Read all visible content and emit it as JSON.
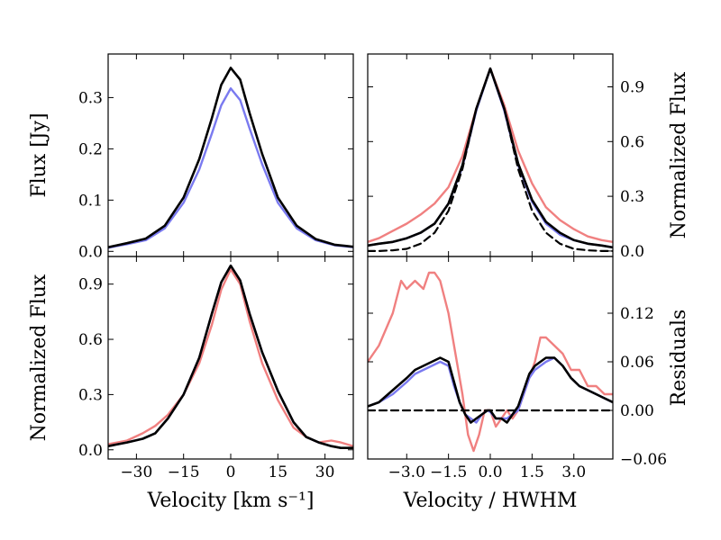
{
  "chart_data": [
    {
      "panel": "top-left",
      "type": "line",
      "xlim": [
        -39,
        39
      ],
      "ylim": [
        -0.01,
        0.385
      ],
      "xticks": [
        -30,
        -15,
        0,
        15,
        30
      ],
      "xtick_labels": [],
      "yticks": [
        0.0,
        0.1,
        0.2,
        0.3
      ],
      "ytick_labels": [
        "0.0",
        "0.1",
        "0.2",
        "0.3"
      ],
      "ytick_side": "left",
      "xlabel": "",
      "ylabel": "Flux [Jy]",
      "series": [
        {
          "name": "blue",
          "color": "#7a7af0",
          "dashed": false,
          "x": [
            -39,
            -33,
            -27,
            -21,
            -15,
            -10,
            -6,
            -3,
            0,
            3,
            6,
            10,
            15,
            21,
            27,
            33,
            39
          ],
          "y": [
            0.007,
            0.014,
            0.022,
            0.045,
            0.095,
            0.16,
            0.23,
            0.285,
            0.318,
            0.295,
            0.24,
            0.17,
            0.095,
            0.045,
            0.022,
            0.012,
            0.008
          ]
        },
        {
          "name": "black",
          "color": "#000000",
          "dashed": false,
          "x": [
            -39,
            -33,
            -27,
            -21,
            -15,
            -10,
            -6,
            -3,
            0,
            3,
            6,
            10,
            15,
            21,
            27,
            33,
            39
          ],
          "y": [
            0.008,
            0.016,
            0.025,
            0.05,
            0.105,
            0.18,
            0.26,
            0.325,
            0.358,
            0.335,
            0.27,
            0.19,
            0.105,
            0.05,
            0.024,
            0.013,
            0.009
          ]
        }
      ]
    },
    {
      "panel": "top-right",
      "type": "line",
      "xlim": [
        -4.4,
        4.4
      ],
      "ylim": [
        -0.03,
        1.08
      ],
      "xticks": [
        -3.0,
        -1.5,
        0.0,
        1.5,
        3.0
      ],
      "xtick_labels": [],
      "yticks": [
        0.0,
        0.3,
        0.6,
        0.9
      ],
      "ytick_labels": [
        "0.0",
        "0.3",
        "0.6",
        "0.9"
      ],
      "ytick_side": "right",
      "xlabel": "",
      "ylabel": "Normalized Flux",
      "series": [
        {
          "name": "red",
          "color": "#f08080",
          "dashed": false,
          "x": [
            -4.4,
            -4.0,
            -3.5,
            -3.0,
            -2.5,
            -2.0,
            -1.5,
            -1.0,
            -0.5,
            0.0,
            0.5,
            1.0,
            1.5,
            2.0,
            2.5,
            3.0,
            3.5,
            4.0,
            4.4
          ],
          "y": [
            0.05,
            0.07,
            0.11,
            0.15,
            0.2,
            0.26,
            0.35,
            0.52,
            0.78,
            1.0,
            0.8,
            0.55,
            0.37,
            0.24,
            0.17,
            0.12,
            0.08,
            0.06,
            0.05
          ]
        },
        {
          "name": "blue",
          "color": "#7a7af0",
          "dashed": false,
          "x": [
            -4.4,
            -4.0,
            -3.5,
            -3.0,
            -2.5,
            -2.0,
            -1.5,
            -1.0,
            -0.5,
            0.0,
            0.5,
            1.0,
            1.5,
            2.0,
            2.5,
            3.0,
            3.5,
            4.0,
            4.4
          ],
          "y": [
            0.03,
            0.04,
            0.05,
            0.07,
            0.1,
            0.15,
            0.26,
            0.46,
            0.77,
            1.0,
            0.77,
            0.47,
            0.27,
            0.15,
            0.09,
            0.06,
            0.04,
            0.03,
            0.02
          ]
        },
        {
          "name": "black",
          "color": "#000000",
          "dashed": false,
          "x": [
            -4.4,
            -4.0,
            -3.5,
            -3.0,
            -2.5,
            -2.0,
            -1.5,
            -1.0,
            -0.5,
            0.0,
            0.5,
            1.0,
            1.5,
            2.0,
            2.5,
            3.0,
            3.5,
            4.0,
            4.4
          ],
          "y": [
            0.03,
            0.04,
            0.05,
            0.07,
            0.1,
            0.15,
            0.26,
            0.47,
            0.78,
            1.0,
            0.78,
            0.48,
            0.28,
            0.16,
            0.1,
            0.06,
            0.04,
            0.03,
            0.02
          ]
        },
        {
          "name": "gaussian",
          "color": "#000000",
          "dashed": true,
          "x": [
            -4.4,
            -4.0,
            -3.5,
            -3.0,
            -2.5,
            -2.0,
            -1.5,
            -1.0,
            -0.5,
            0.0,
            0.5,
            1.0,
            1.5,
            2.0,
            2.5,
            3.0,
            3.5,
            4.0,
            4.4
          ],
          "y": [
            0.0,
            0.0,
            0.004,
            0.012,
            0.04,
            0.1,
            0.22,
            0.45,
            0.78,
            1.0,
            0.78,
            0.45,
            0.22,
            0.1,
            0.04,
            0.012,
            0.004,
            0.0,
            0.0
          ]
        }
      ]
    },
    {
      "panel": "bottom-left",
      "type": "line",
      "xlim": [
        -39,
        39
      ],
      "ylim": [
        -0.05,
        1.05
      ],
      "xticks": [
        -30,
        -15,
        0,
        15,
        30
      ],
      "xtick_labels": [
        "−30",
        "−15",
        "0",
        "15",
        "30"
      ],
      "yticks": [
        0.0,
        0.3,
        0.6,
        0.9
      ],
      "ytick_labels": [
        "0.0",
        "0.3",
        "0.6",
        "0.9"
      ],
      "ytick_side": "left",
      "xlabel": "Velocity [km s⁻¹]",
      "ylabel": "Normalized Flux",
      "series": [
        {
          "name": "red",
          "color": "#f08080",
          "dashed": false,
          "x": [
            -39,
            -33,
            -28,
            -24,
            -20,
            -15,
            -10,
            -6,
            -3,
            0,
            3,
            6,
            10,
            15,
            20,
            24,
            28,
            32,
            35,
            39
          ],
          "y": [
            0.03,
            0.05,
            0.09,
            0.13,
            0.19,
            0.3,
            0.47,
            0.68,
            0.87,
            0.98,
            0.9,
            0.7,
            0.47,
            0.27,
            0.12,
            0.07,
            0.04,
            0.05,
            0.04,
            0.02
          ]
        },
        {
          "name": "blue",
          "color": "#7a7af0",
          "dashed": false,
          "x": [
            -39,
            -33,
            -28,
            -24,
            -20,
            -15,
            -10,
            -6,
            -3,
            0,
            3,
            6,
            10,
            15,
            20,
            24,
            28,
            32,
            35,
            39
          ],
          "y": [
            0.02,
            0.04,
            0.06,
            0.09,
            0.17,
            0.3,
            0.5,
            0.74,
            0.91,
            1.0,
            0.92,
            0.74,
            0.53,
            0.32,
            0.15,
            0.07,
            0.04,
            0.02,
            0.01,
            0.01
          ]
        },
        {
          "name": "black",
          "color": "#000000",
          "dashed": false,
          "x": [
            -39,
            -33,
            -28,
            -24,
            -20,
            -15,
            -10,
            -6,
            -3,
            0,
            3,
            6,
            10,
            15,
            20,
            24,
            28,
            32,
            35,
            39
          ],
          "y": [
            0.02,
            0.04,
            0.06,
            0.09,
            0.17,
            0.3,
            0.5,
            0.74,
            0.91,
            1.0,
            0.92,
            0.74,
            0.53,
            0.32,
            0.15,
            0.07,
            0.04,
            0.02,
            0.01,
            0.01
          ]
        }
      ]
    },
    {
      "panel": "bottom-right",
      "type": "line",
      "xlim": [
        -4.4,
        4.4
      ],
      "ylim": [
        -0.06,
        0.19
      ],
      "xticks": [
        -3.0,
        -1.5,
        0.0,
        1.5,
        3.0
      ],
      "xtick_labels": [
        "−3.0",
        "−1.5",
        "0.0",
        "1.5",
        "3.0"
      ],
      "yticks": [
        -0.06,
        0.0,
        0.06,
        0.12
      ],
      "ytick_labels": [
        "−0.06",
        "0.00",
        "0.06",
        "0.12"
      ],
      "ytick_side": "right",
      "xlabel": "Velocity / HWHM",
      "ylabel": "Residuals",
      "series": [
        {
          "name": "red",
          "color": "#f08080",
          "dashed": false,
          "x": [
            -4.4,
            -4.0,
            -3.5,
            -3.2,
            -3.0,
            -2.7,
            -2.4,
            -2.2,
            -2.0,
            -1.8,
            -1.5,
            -1.3,
            -1.0,
            -0.8,
            -0.6,
            -0.4,
            -0.2,
            0.0,
            0.2,
            0.4,
            0.6,
            0.8,
            1.0,
            1.2,
            1.4,
            1.6,
            1.8,
            2.0,
            2.3,
            2.6,
            2.9,
            3.2,
            3.5,
            3.8,
            4.1,
            4.4
          ],
          "y": [
            0.06,
            0.08,
            0.12,
            0.16,
            0.15,
            0.16,
            0.15,
            0.17,
            0.17,
            0.16,
            0.12,
            0.08,
            0.02,
            -0.03,
            -0.05,
            -0.03,
            0.0,
            0.0,
            -0.02,
            -0.01,
            0.0,
            -0.01,
            0.0,
            0.02,
            0.04,
            0.06,
            0.09,
            0.09,
            0.08,
            0.07,
            0.05,
            0.05,
            0.03,
            0.03,
            0.02,
            0.02
          ]
        },
        {
          "name": "blue",
          "color": "#7a7af0",
          "dashed": false,
          "x": [
            -4.4,
            -4.0,
            -3.5,
            -3.0,
            -2.7,
            -2.4,
            -2.1,
            -1.8,
            -1.5,
            -1.3,
            -1.1,
            -0.9,
            -0.7,
            -0.5,
            -0.3,
            -0.1,
            0.0,
            0.2,
            0.4,
            0.6,
            0.8,
            1.0,
            1.2,
            1.4,
            1.6,
            1.8,
            2.0,
            2.3,
            2.6,
            2.9,
            3.2,
            3.5,
            3.8,
            4.1,
            4.4
          ],
          "y": [
            0.005,
            0.01,
            0.02,
            0.035,
            0.045,
            0.05,
            0.055,
            0.06,
            0.055,
            0.03,
            0.01,
            -0.005,
            -0.01,
            -0.015,
            -0.005,
            0.0,
            -0.002,
            -0.01,
            -0.01,
            -0.01,
            -0.005,
            0.0,
            0.02,
            0.04,
            0.05,
            0.055,
            0.06,
            0.065,
            0.055,
            0.04,
            0.03,
            0.025,
            0.02,
            0.015,
            0.01
          ]
        },
        {
          "name": "black",
          "color": "#000000",
          "dashed": false,
          "x": [
            -4.4,
            -4.0,
            -3.5,
            -3.0,
            -2.7,
            -2.4,
            -2.1,
            -1.8,
            -1.5,
            -1.3,
            -1.1,
            -0.9,
            -0.7,
            -0.5,
            -0.3,
            -0.1,
            0.0,
            0.2,
            0.4,
            0.6,
            0.8,
            1.0,
            1.2,
            1.4,
            1.6,
            1.8,
            2.0,
            2.3,
            2.6,
            2.9,
            3.2,
            3.5,
            3.8,
            4.1,
            4.4
          ],
          "y": [
            0.005,
            0.01,
            0.025,
            0.04,
            0.05,
            0.055,
            0.06,
            0.065,
            0.06,
            0.035,
            0.01,
            -0.005,
            -0.015,
            -0.01,
            -0.005,
            0.0,
            0.0,
            -0.01,
            -0.01,
            -0.015,
            -0.005,
            0.005,
            0.025,
            0.045,
            0.055,
            0.06,
            0.065,
            0.065,
            0.055,
            0.04,
            0.03,
            0.025,
            0.02,
            0.015,
            0.01
          ]
        },
        {
          "name": "zero-line",
          "color": "#000000",
          "dashed": true,
          "x": [
            -4.4,
            4.4
          ],
          "y": [
            0.0,
            0.0
          ]
        }
      ]
    }
  ]
}
